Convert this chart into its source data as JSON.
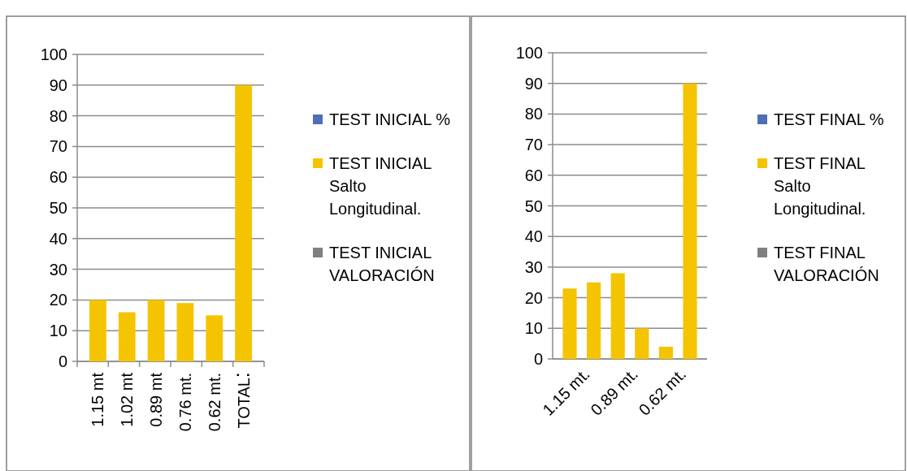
{
  "chart_data": [
    {
      "type": "bar",
      "categories": [
        "1.15 mt",
        "1.02 mt",
        "0.89 mt",
        "0.76 mt.",
        "0.62 mt.",
        "TOTAL"
      ],
      "series": [
        {
          "name": "TEST INICIAL %",
          "color": "#4f6fb5",
          "values": [
            null,
            null,
            null,
            null,
            null,
            null
          ]
        },
        {
          "name": "TEST INICIAL Salto Longitudinal.",
          "color": "#f5c400",
          "values": [
            20,
            16,
            20,
            19,
            15,
            90
          ]
        },
        {
          "name": "TEST INICIAL VALORACIÓN",
          "color": "#808080",
          "values": [
            null,
            null,
            null,
            null,
            null,
            null
          ]
        }
      ],
      "ylim": [
        0,
        100
      ],
      "yticks": [
        0,
        10,
        20,
        30,
        40,
        50,
        60,
        70,
        80,
        90,
        100
      ],
      "grid": "y",
      "legend": "right"
    },
    {
      "type": "bar",
      "categories": [
        "1.15 mt.",
        null,
        "0.89 mt.",
        null,
        "0.62 mt.",
        null
      ],
      "series": [
        {
          "name": "TEST FINAL %",
          "color": "#4f6fb5",
          "values": [
            null,
            null,
            null,
            null,
            null,
            null
          ]
        },
        {
          "name": "TEST FINAL Salto Longitudinal.",
          "color": "#f5c400",
          "values": [
            23,
            25,
            28,
            10,
            4,
            90
          ]
        },
        {
          "name": "TEST FINAL VALORACIÓN",
          "color": "#808080",
          "values": [
            null,
            null,
            null,
            null,
            null,
            null
          ]
        }
      ],
      "ylim": [
        0,
        100
      ],
      "yticks": [
        0,
        10,
        20,
        30,
        40,
        50,
        60,
        70,
        80,
        90,
        100
      ],
      "grid": "y",
      "legend": "right"
    }
  ]
}
